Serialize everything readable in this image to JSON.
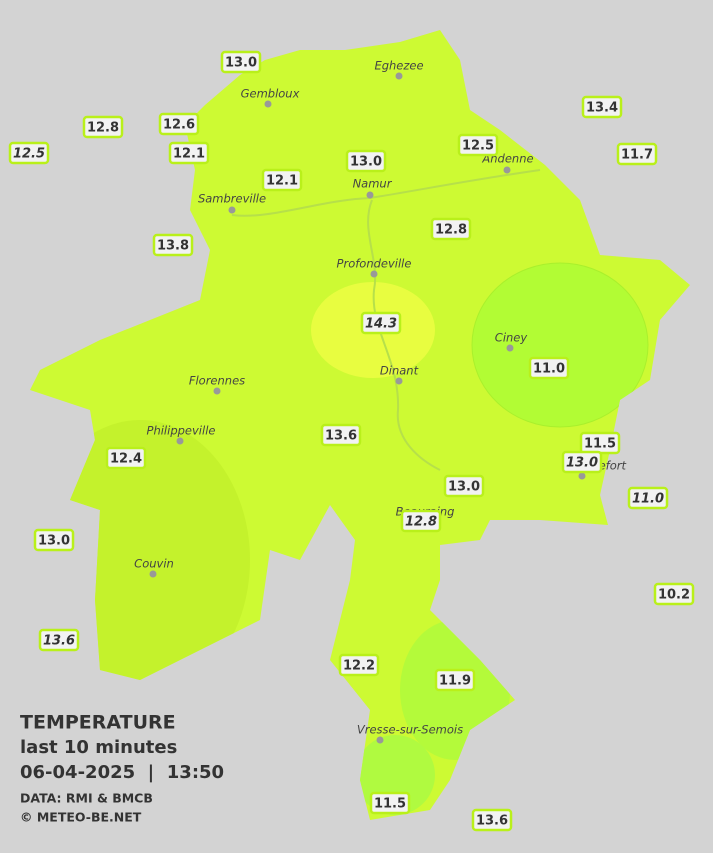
{
  "map": {
    "legend": {
      "title": "TEMPERATURE",
      "subtitle": "last 10 minutes",
      "datetime": "06-04-2025  |  13:50",
      "source": "DATA: RMI & BMCB",
      "credit": "© METEO-BE.NET"
    },
    "cities": [
      "Eghezee",
      "Gembloux",
      "Andenne",
      "Namur",
      "Sambreville",
      "Profondeville",
      "Ciney",
      "Florennes",
      "Dinant",
      "Philippeville",
      "Rochefort",
      "Beauraing",
      "Couvin",
      "Vresse-sur-Semois"
    ],
    "stations": [
      {
        "value": "13.0",
        "italic": false
      },
      {
        "value": "12.8",
        "italic": false
      },
      {
        "value": "12.6",
        "italic": false
      },
      {
        "value": "12.5",
        "italic": true
      },
      {
        "value": "12.1",
        "italic": false
      },
      {
        "value": "12.1",
        "italic": false
      },
      {
        "value": "13.0",
        "italic": false
      },
      {
        "value": "12.5",
        "italic": false
      },
      {
        "value": "13.4",
        "italic": false
      },
      {
        "value": "11.7",
        "italic": false
      },
      {
        "value": "13.8",
        "italic": false
      },
      {
        "value": "12.8",
        "italic": false
      },
      {
        "value": "14.3",
        "italic": true
      },
      {
        "value": "11.0",
        "italic": false
      },
      {
        "value": "13.6",
        "italic": false
      },
      {
        "value": "11.5",
        "italic": false
      },
      {
        "value": "13.0",
        "italic": true
      },
      {
        "value": "12.4",
        "italic": false
      },
      {
        "value": "13.0",
        "italic": false
      },
      {
        "value": "11.0",
        "italic": true
      },
      {
        "value": "12.8",
        "italic": true
      },
      {
        "value": "13.0",
        "italic": false
      },
      {
        "value": "10.2",
        "italic": false
      },
      {
        "value": "13.6",
        "italic": true
      },
      {
        "value": "12.2",
        "italic": false
      },
      {
        "value": "11.9",
        "italic": false
      },
      {
        "value": "11.5",
        "italic": false
      },
      {
        "value": "13.6",
        "italic": false
      }
    ]
  }
}
